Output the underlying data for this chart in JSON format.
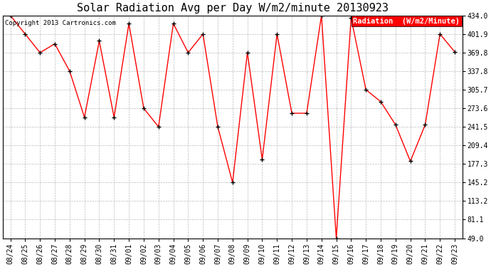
{
  "title": "Solar Radiation Avg per Day W/m2/minute 20130923",
  "copyright": "Copyright 2013 Cartronics.com",
  "legend_label": "Radiation  (W/m2/Minute)",
  "x_labels": [
    "08/24",
    "08/25",
    "08/26",
    "08/27",
    "08/28",
    "08/29",
    "08/30",
    "08/31",
    "09/01",
    "09/02",
    "09/03",
    "09/04",
    "09/05",
    "09/06",
    "09/07",
    "09/08",
    "09/09",
    "09/10",
    "09/11",
    "09/12",
    "09/13",
    "09/14",
    "09/15",
    "09/16",
    "09/17",
    "09/18",
    "09/19",
    "09/20",
    "09/21",
    "09/22",
    "09/23"
  ],
  "y_values": [
    434.0,
    401.9,
    369.8,
    385.0,
    337.8,
    258.0,
    390.0,
    258.0,
    420.0,
    273.6,
    241.5,
    420.0,
    369.8,
    401.9,
    241.5,
    145.2,
    369.8,
    185.0,
    401.9,
    265.0,
    265.0,
    434.0,
    49.0,
    430.0,
    305.7,
    285.0,
    245.0,
    182.0,
    245.0,
    401.9,
    371.0
  ],
  "y_ticks": [
    49.0,
    81.1,
    113.2,
    145.2,
    177.3,
    209.4,
    241.5,
    273.6,
    305.7,
    337.8,
    369.8,
    401.9,
    434.0
  ],
  "line_color": "#FF0000",
  "marker_color": "#000000",
  "bg_color": "#FFFFFF",
  "plot_bg_color": "#FFFFFF",
  "grid_color": "#AAAAAA",
  "legend_bg": "#FF0000",
  "legend_text_color": "#FFFFFF",
  "title_fontsize": 11,
  "tick_fontsize": 7,
  "copyright_fontsize": 6.5,
  "legend_fontsize": 7.5
}
